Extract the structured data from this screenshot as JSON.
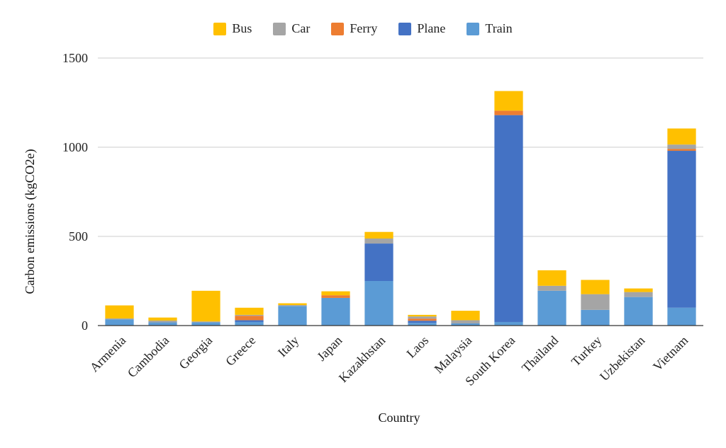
{
  "chart_data": {
    "type": "bar",
    "stacked": true,
    "title": "",
    "xlabel": "Country",
    "ylabel": "Carbon emissions (kgCO2e)",
    "ylim": [
      0,
      1500
    ],
    "yticks": [
      0,
      500,
      1000,
      1500
    ],
    "grid": true,
    "legend_position": "top",
    "categories": [
      "Armenia",
      "Cambodia",
      "Georgia",
      "Greece",
      "Italy",
      "Japan",
      "Kazakhstan",
      "Laos",
      "Malaysia",
      "South Korea",
      "Thailand",
      "Turkey",
      "Uzbekistan",
      "Vietnam"
    ],
    "series": [
      {
        "name": "Train",
        "color": "#5b9bd5",
        "values": [
          35,
          18,
          18,
          20,
          110,
          155,
          250,
          15,
          12,
          20,
          195,
          88,
          160,
          100
        ]
      },
      {
        "name": "Plane",
        "color": "#4472c4",
        "values": [
          0,
          0,
          0,
          10,
          0,
          0,
          210,
          12,
          0,
          1160,
          0,
          0,
          0,
          880
        ]
      },
      {
        "name": "Ferry",
        "color": "#ed7d31",
        "values": [
          0,
          0,
          0,
          25,
          0,
          15,
          0,
          12,
          0,
          25,
          0,
          0,
          0,
          10
        ]
      },
      {
        "name": "Car",
        "color": "#a5a5a5",
        "values": [
          5,
          10,
          5,
          5,
          5,
          0,
          28,
          12,
          18,
          0,
          28,
          88,
          28,
          25
        ]
      },
      {
        "name": "Bus",
        "color": "#ffc000",
        "values": [
          73,
          17,
          172,
          40,
          10,
          22,
          37,
          9,
          53,
          110,
          87,
          80,
          20,
          90
        ]
      }
    ],
    "legend_order": [
      "Bus",
      "Car",
      "Ferry",
      "Plane",
      "Train"
    ]
  }
}
